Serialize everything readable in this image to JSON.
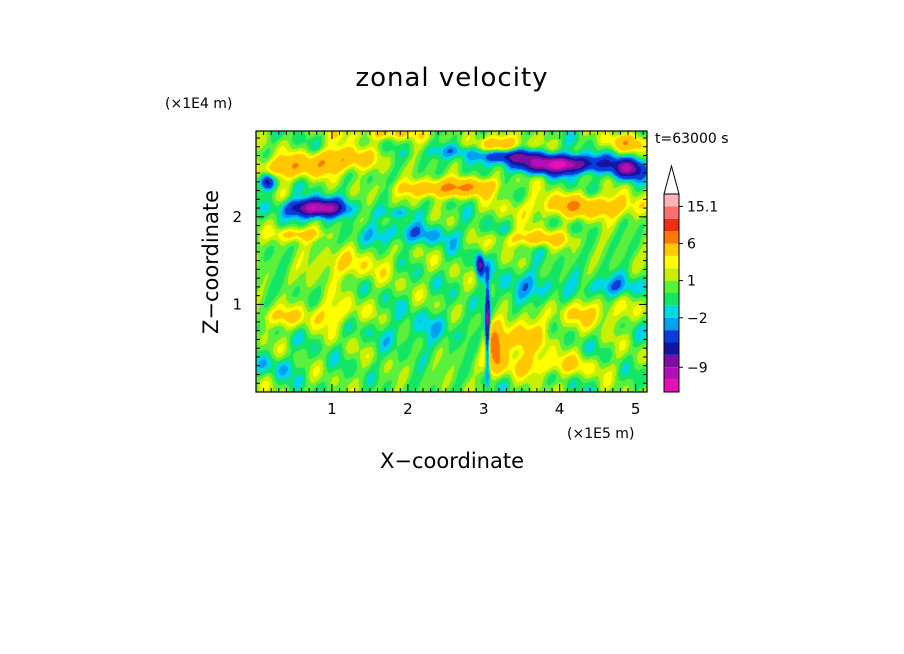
{
  "chart_data": {
    "type": "heatmap",
    "title": "zonal velocity",
    "xlabel": "X−coordinate",
    "ylabel": "Z−coordinate",
    "x_unit_label": "(×1E5 m)",
    "y_unit_label": "(×1E4 m)",
    "time_label": "t=63000 s",
    "xlim": [
      0,
      5.15
    ],
    "ylim": [
      0,
      2.98
    ],
    "x_ticks": [
      {
        "value": 1,
        "label": "1"
      },
      {
        "value": 2,
        "label": "2"
      },
      {
        "value": 3,
        "label": "3"
      },
      {
        "value": 4,
        "label": "4"
      },
      {
        "value": 5,
        "label": "5"
      }
    ],
    "y_ticks": [
      {
        "value": 1,
        "label": "1"
      },
      {
        "value": 2,
        "label": "2"
      }
    ],
    "grid": false,
    "legend": "right colorbar",
    "colorbar": {
      "levels": [
        -14,
        -11,
        -9,
        -7,
        -5,
        -3,
        -2,
        -1,
        0,
        1,
        2,
        3,
        6,
        9,
        12,
        15.1,
        18
      ],
      "colors": [
        "#e60fb4",
        "#b40fb4",
        "#7d0fa0",
        "#1414a0",
        "#0a3cdc",
        "#00a0f0",
        "#00d7e6",
        "#14e664",
        "#5af03c",
        "#c8f000",
        "#ffff00",
        "#ffc800",
        "#ff7800",
        "#f02d0f",
        "#ff6e6e",
        "#ffb4b4"
      ],
      "labels": [
        {
          "value": 15.1,
          "label": "15.1"
        },
        {
          "value": 6,
          "label": "6"
        },
        {
          "value": 1,
          "label": "1"
        },
        {
          "value": -2,
          "label": "−2"
        },
        {
          "value": -9,
          "label": "−9"
        }
      ],
      "overflow_arrow": "top"
    },
    "background_value": 0.3,
    "features": [
      {
        "x": 0.35,
        "z": 2.55,
        "sx": 0.45,
        "sz": 0.13,
        "a": 5
      },
      {
        "x": 1.1,
        "z": 2.65,
        "sx": 0.4,
        "sz": 0.13,
        "a": 6
      },
      {
        "x": 2.35,
        "z": 2.32,
        "sx": 0.5,
        "sz": 0.1,
        "a": 5
      },
      {
        "x": 2.9,
        "z": 2.35,
        "sx": 0.35,
        "sz": 0.1,
        "a": 4
      },
      {
        "x": 4.35,
        "z": 2.12,
        "sx": 0.8,
        "sz": 0.13,
        "a": 5
      },
      {
        "x": 3.2,
        "z": 2.8,
        "sx": 0.35,
        "sz": 0.12,
        "a": 5
      },
      {
        "x": 4.9,
        "z": 2.85,
        "sx": 0.3,
        "sz": 0.1,
        "a": 4
      },
      {
        "x": 1.7,
        "z": 2.95,
        "sx": 0.6,
        "sz": 0.08,
        "a": 3
      },
      {
        "x": 0.6,
        "z": 1.8,
        "sx": 0.35,
        "sz": 0.08,
        "a": 4
      },
      {
        "x": 3.65,
        "z": 1.75,
        "sx": 0.5,
        "sz": 0.09,
        "a": 4
      },
      {
        "x": 0.3,
        "z": 0.85,
        "sx": 0.3,
        "sz": 0.12,
        "a": 3
      },
      {
        "x": 1.0,
        "z": 0.9,
        "sx": 0.35,
        "sz": 0.15,
        "a": 3
      },
      {
        "x": 3.5,
        "z": 0.6,
        "sx": 0.35,
        "sz": 0.22,
        "a": 4
      },
      {
        "x": 3.8,
        "z": 0.3,
        "sx": 0.7,
        "sz": 0.12,
        "a": 3
      },
      {
        "x": 3.15,
        "z": 0.5,
        "sx": 0.12,
        "sz": 0.25,
        "a": 6
      },
      {
        "x": 4.4,
        "z": 0.9,
        "sx": 0.5,
        "sz": 0.15,
        "a": 3
      },
      {
        "x": 1.2,
        "z": 1.45,
        "sx": 0.55,
        "sz": 0.18,
        "a": 2.5
      },
      {
        "x": 0.8,
        "z": 2.1,
        "sx": 0.35,
        "sz": 0.1,
        "a": -12
      },
      {
        "x": 0.15,
        "z": 2.4,
        "sx": 0.1,
        "sz": 0.1,
        "a": -8
      },
      {
        "x": 3.3,
        "z": 2.7,
        "sx": 0.4,
        "sz": 0.08,
        "a": -8
      },
      {
        "x": 4.0,
        "z": 2.6,
        "sx": 0.55,
        "sz": 0.1,
        "a": -12
      },
      {
        "x": 4.9,
        "z": 2.55,
        "sx": 0.2,
        "sz": 0.12,
        "a": -9
      },
      {
        "x": 3.05,
        "z": 0.7,
        "sx": 0.03,
        "sz": 0.5,
        "a": -10
      },
      {
        "x": 2.95,
        "z": 1.45,
        "sx": 0.05,
        "sz": 0.12,
        "a": -8
      },
      {
        "x": 2.0,
        "z": 1.8,
        "sx": 0.8,
        "sz": 0.12,
        "a": -2.5
      },
      {
        "x": 4.7,
        "z": 1.2,
        "sx": 0.35,
        "sz": 0.12,
        "a": -3
      },
      {
        "x": 3.6,
        "z": 1.2,
        "sx": 0.5,
        "sz": 0.2,
        "a": -2
      },
      {
        "x": 2.2,
        "z": 0.7,
        "sx": 0.6,
        "sz": 0.2,
        "a": -1.5
      },
      {
        "x": 0.3,
        "z": 0.3,
        "sx": 0.35,
        "sz": 0.12,
        "a": -1.5
      },
      {
        "x": 2.6,
        "z": 2.75,
        "sx": 0.3,
        "sz": 0.08,
        "a": -3
      },
      {
        "x": 1.9,
        "z": 2.05,
        "sx": 0.3,
        "sz": 0.06,
        "a": -2
      }
    ]
  }
}
